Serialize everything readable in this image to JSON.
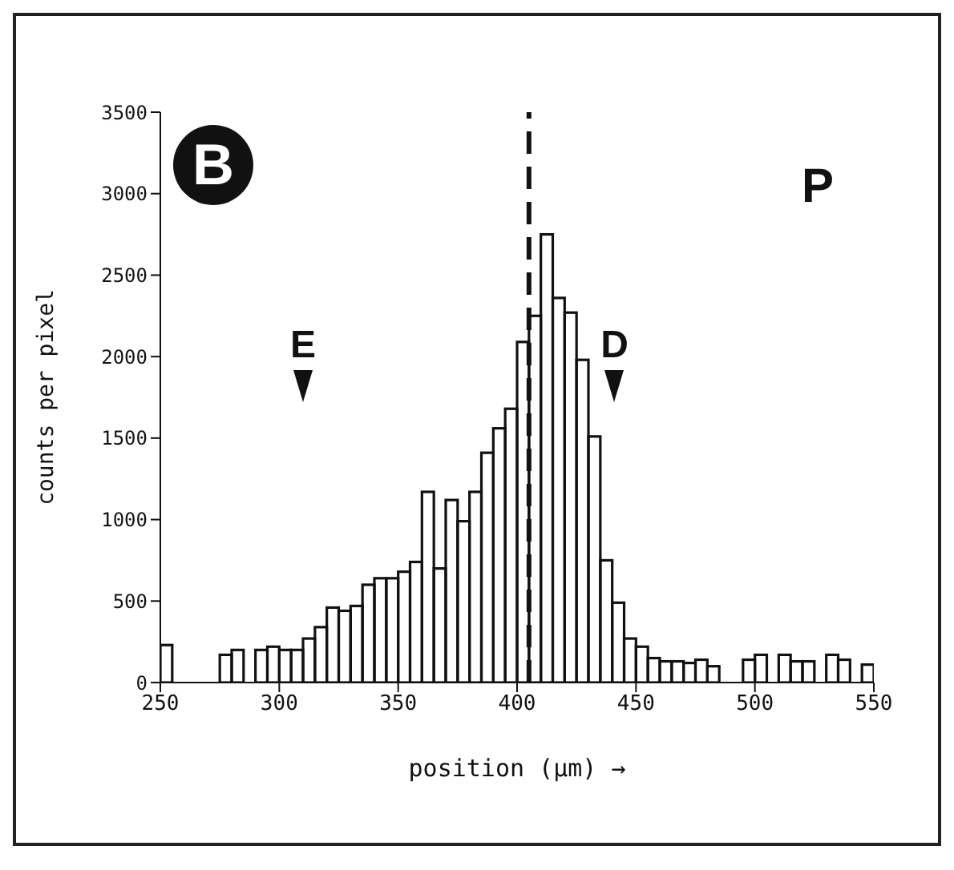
{
  "chart_data": {
    "type": "histogram",
    "xlabel": "position (μm) →",
    "ylabel": "counts per pixel",
    "bins": [
      250,
      255,
      260,
      265,
      270,
      275,
      280,
      285,
      290,
      295,
      300,
      305,
      310,
      315,
      320,
      325,
      330,
      335,
      340,
      345,
      350,
      355,
      360,
      365,
      370,
      375,
      380,
      385,
      390,
      395,
      400,
      405,
      410,
      415,
      420,
      425,
      430,
      435,
      440,
      445,
      450,
      455,
      460,
      465,
      470,
      475,
      480,
      485,
      490,
      495,
      500,
      505,
      510,
      515,
      520,
      525,
      530,
      535,
      540,
      545,
      550
    ],
    "values": [
      230,
      0,
      0,
      0,
      0,
      170,
      200,
      0,
      200,
      220,
      200,
      200,
      270,
      340,
      460,
      440,
      470,
      600,
      640,
      640,
      680,
      740,
      1170,
      700,
      1120,
      990,
      1170,
      1410,
      1560,
      1680,
      2090,
      2250,
      2750,
      2360,
      2270,
      1980,
      1510,
      750,
      490,
      270,
      220,
      150,
      130,
      130,
      120,
      140,
      100,
      0,
      0,
      140,
      170,
      0,
      170,
      130,
      130,
      0,
      170,
      140,
      0,
      110
    ],
    "color": "#111111",
    "xlim": [
      250,
      550
    ],
    "xticks": [
      250,
      300,
      350,
      400,
      450,
      500,
      550
    ],
    "ylim": [
      0,
      3500
    ],
    "yticks": [
      0,
      500,
      1000,
      1500,
      2000,
      2500,
      3000,
      3500
    ],
    "ref_lines": [
      {
        "axis": "x",
        "value": 405,
        "line_style": "dashed",
        "color": "#111111"
      }
    ],
    "annotations": [
      "B",
      "P",
      "E",
      "D"
    ]
  }
}
